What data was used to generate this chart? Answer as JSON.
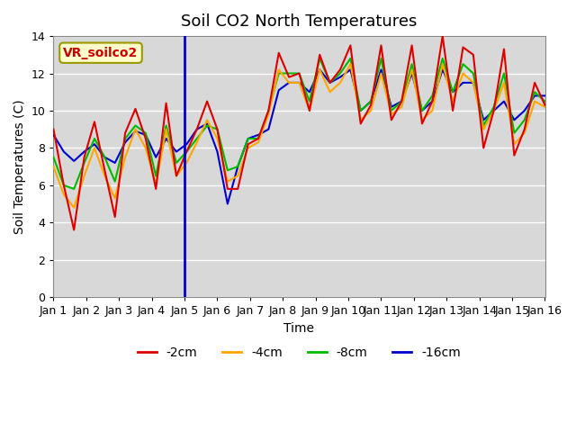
{
  "title": "Soil CO2 North Temperatures",
  "xlabel": "Time",
  "ylabel": "Soil Temperatures (C)",
  "annotation_label": "VR_soilco2",
  "ylim": [
    0,
    14
  ],
  "yticks": [
    0,
    2,
    4,
    6,
    8,
    10,
    12,
    14
  ],
  "xtick_labels": [
    "Jan 1",
    "Jan 2",
    "Jan 3",
    "Jan 4",
    "Jan 5",
    "Jan 6",
    "Jan 7",
    "Jan 8",
    "Jan 9",
    "Jan 10",
    "Jan 11",
    "Jan 12",
    "Jan 13",
    "Jan 14",
    "Jan 15",
    "Jan 16"
  ],
  "series": {
    "2cm": {
      "color": "#dd0000",
      "label": "-2cm",
      "values": [
        9.0,
        6.0,
        3.6,
        7.5,
        9.4,
        6.8,
        4.3,
        8.8,
        10.1,
        8.5,
        5.8,
        10.4,
        6.5,
        7.8,
        9.0,
        10.5,
        9.0,
        5.8,
        5.8,
        8.2,
        8.5,
        10.0,
        13.1,
        11.8,
        12.0,
        10.0,
        13.0,
        11.5,
        12.2,
        13.5,
        9.3,
        10.3,
        13.5,
        9.5,
        10.5,
        13.5,
        9.3,
        10.5,
        14.0,
        10.0,
        13.4,
        13.0,
        8.0,
        10.0,
        13.3,
        7.6,
        9.0,
        11.5,
        10.3
      ]
    },
    "4cm": {
      "color": "#ffa500",
      "label": "-4cm",
      "values": [
        7.0,
        5.5,
        4.8,
        6.5,
        8.0,
        6.5,
        5.3,
        7.5,
        9.0,
        8.0,
        6.0,
        9.0,
        6.5,
        7.2,
        8.3,
        9.5,
        8.5,
        6.2,
        6.5,
        8.0,
        8.3,
        9.8,
        12.2,
        11.5,
        11.5,
        10.0,
        12.2,
        11.0,
        11.5,
        12.5,
        9.5,
        10.0,
        12.0,
        9.8,
        10.2,
        12.2,
        9.5,
        10.0,
        12.5,
        10.5,
        12.0,
        11.5,
        9.0,
        10.0,
        11.5,
        8.2,
        8.8,
        10.5,
        10.2
      ]
    },
    "8cm": {
      "color": "#00bb00",
      "label": "-8cm",
      "values": [
        7.5,
        6.0,
        5.8,
        7.2,
        8.5,
        7.5,
        6.2,
        8.5,
        9.2,
        8.8,
        6.5,
        9.2,
        7.2,
        7.8,
        8.5,
        9.2,
        9.0,
        6.8,
        7.0,
        8.5,
        8.5,
        10.0,
        12.0,
        12.0,
        12.0,
        10.5,
        12.8,
        11.5,
        12.0,
        12.8,
        10.0,
        10.5,
        12.8,
        10.0,
        10.5,
        12.5,
        10.0,
        10.8,
        12.8,
        11.0,
        12.5,
        12.0,
        9.2,
        10.2,
        12.0,
        8.8,
        9.5,
        11.0,
        10.5
      ]
    },
    "16cm": {
      "color": "#0000cc",
      "label": "-16cm",
      "values": [
        8.7,
        7.8,
        7.3,
        7.8,
        8.2,
        7.5,
        7.2,
        8.3,
        8.9,
        8.7,
        7.5,
        8.5,
        7.8,
        8.2,
        9.0,
        9.3,
        7.8,
        5.0,
        7.0,
        8.5,
        8.7,
        9.0,
        11.1,
        11.5,
        11.5,
        11.0,
        12.2,
        11.5,
        11.8,
        12.2,
        10.0,
        10.5,
        12.2,
        10.2,
        10.5,
        12.0,
        10.0,
        10.5,
        12.2,
        11.0,
        11.5,
        11.5,
        9.5,
        10.0,
        10.5,
        9.5,
        10.0,
        10.8,
        10.8
      ]
    }
  },
  "vline_x": 4.0,
  "vline_color": "#0000cc",
  "fig_bg_color": "#ffffff",
  "plot_bg_color": "#d8d8d8",
  "grid_color": "#bbbbbb",
  "annotation_bg": "#ffffcc",
  "annotation_border": "#999900",
  "annotation_text_color": "#cc0000",
  "annotation_fontsize": 10,
  "title_fontsize": 13,
  "axis_label_fontsize": 10,
  "tick_fontsize": 9,
  "legend_fontsize": 10
}
